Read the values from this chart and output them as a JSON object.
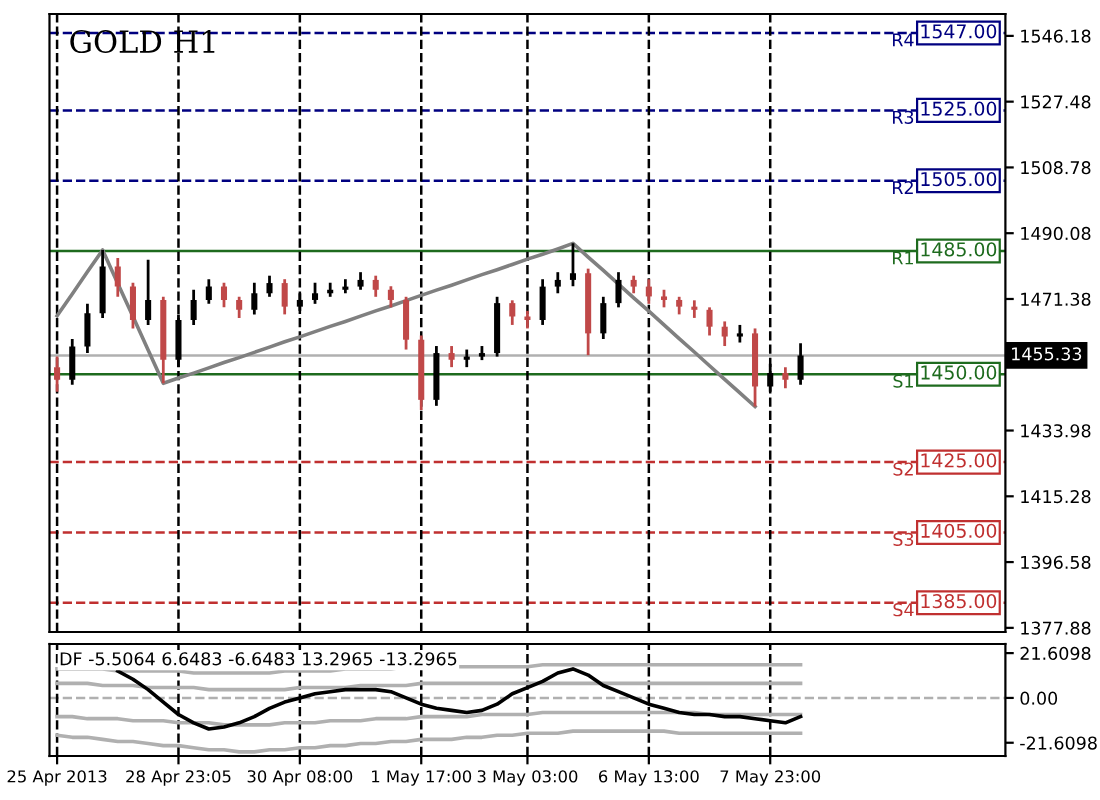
{
  "chart_data": [
    {
      "type": "candlestick",
      "title": "GOLD H1",
      "categories": [
        null,
        null,
        null,
        null,
        null,
        null,
        null,
        null,
        null,
        null,
        null,
        null,
        null,
        null,
        null,
        null,
        null,
        null,
        null,
        null,
        null,
        null,
        null,
        null,
        null,
        null,
        null,
        null,
        null,
        null,
        null,
        null,
        null,
        null,
        null,
        null,
        null,
        null,
        null,
        null,
        null,
        null,
        null,
        null,
        null,
        null,
        null,
        null,
        null,
        null,
        null,
        null,
        null,
        null,
        null,
        null,
        null,
        null,
        null,
        null,
        null,
        null,
        null
      ],
      "ohlc": [
        [
          1452.0,
          1455.0,
          1445.0,
          1448.4
        ],
        [
          1448.4,
          1460.0,
          1447.0,
          1457.9
        ],
        [
          1457.9,
          1470.0,
          1456.0,
          1467.3
        ],
        [
          1467.3,
          1485.3,
          1466.0,
          1480.6
        ],
        [
          1480.6,
          1483.0,
          1472.0,
          1474.9
        ],
        [
          1474.9,
          1476.0,
          1463.0,
          1465.4
        ],
        [
          1465.4,
          1482.5,
          1464.0,
          1471.1
        ],
        [
          1471.1,
          1472.0,
          1447.4,
          1454.1
        ],
        [
          1454.1,
          1467.0,
          1452.0,
          1465.4
        ],
        [
          1465.4,
          1474.0,
          1464.0,
          1471.1
        ],
        [
          1471.1,
          1477.0,
          1470.0,
          1474.9
        ],
        [
          1474.9,
          1476.0,
          1469.0,
          1471.1
        ],
        [
          1471.1,
          1472.0,
          1466.0,
          1468.3
        ],
        [
          1468.3,
          1476.0,
          1467.0,
          1473.0
        ],
        [
          1473.0,
          1478.0,
          1472.0,
          1475.9
        ],
        [
          1475.9,
          1477.0,
          1467.0,
          1469.2
        ],
        [
          1469.2,
          1473.0,
          1468.0,
          1471.1
        ],
        [
          1471.1,
          1476.0,
          1470.0,
          1473.0
        ],
        [
          1473.0,
          1476.0,
          1472.0,
          1474.0
        ],
        [
          1474.0,
          1477.0,
          1473.0,
          1474.9
        ],
        [
          1474.9,
          1479.0,
          1474.0,
          1476.8
        ],
        [
          1476.8,
          1478.0,
          1472.0,
          1474.0
        ],
        [
          1474.0,
          1475.0,
          1469.0,
          1471.1
        ],
        [
          1471.1,
          1472.0,
          1457.0,
          1459.8
        ],
        [
          1459.8,
          1461.0,
          1439.8,
          1442.7
        ],
        [
          1442.7,
          1458.0,
          1441.0,
          1456.0
        ],
        [
          1456.0,
          1458.0,
          1452.0,
          1454.1
        ],
        [
          1454.1,
          1457.0,
          1452.0,
          1455.0
        ],
        [
          1455.0,
          1458.0,
          1454.0,
          1456.0
        ],
        [
          1456.0,
          1472.0,
          1455.0,
          1470.2
        ],
        [
          1470.2,
          1471.0,
          1464.0,
          1466.4
        ],
        [
          1466.4,
          1468.0,
          1463.0,
          1465.4
        ],
        [
          1465.4,
          1477.0,
          1464.0,
          1474.9
        ],
        [
          1474.9,
          1479.0,
          1473.0,
          1476.8
        ],
        [
          1476.8,
          1487.2,
          1475.0,
          1478.7
        ],
        [
          1478.7,
          1480.0,
          1455.4,
          1461.6
        ],
        [
          1461.6,
          1472.0,
          1460.0,
          1470.2
        ],
        [
          1470.2,
          1479.0,
          1469.0,
          1476.8
        ],
        [
          1476.8,
          1478.0,
          1473.0,
          1474.9
        ],
        [
          1474.9,
          1477.0,
          1470.0,
          1472.1
        ],
        [
          1472.1,
          1474.0,
          1469.0,
          1471.1
        ],
        [
          1471.1,
          1472.0,
          1467.0,
          1469.2
        ],
        [
          1469.2,
          1471.0,
          1466.0,
          1468.3
        ],
        [
          1468.3,
          1469.0,
          1461.0,
          1463.5
        ],
        [
          1463.5,
          1465.0,
          1458.0,
          1460.7
        ],
        [
          1460.7,
          1464.0,
          1459.0,
          1461.6
        ],
        [
          1461.6,
          1463.0,
          1440.8,
          1446.5
        ],
        [
          1446.5,
          1453.0,
          1445.0,
          1450.3
        ],
        [
          1450.3,
          1452.0,
          1446.0,
          1448.4
        ],
        [
          1448.4,
          1458.8,
          1447.0,
          1455.3
        ],
        null,
        null,
        null,
        null,
        null,
        null,
        null,
        null,
        null,
        null,
        null,
        null,
        null
      ],
      "colors": [
        "#c04848",
        "#000000",
        "#000000",
        "#000000",
        "#c04848",
        "#c04848",
        "#000000",
        "#c04848",
        "#000000",
        "#000000",
        "#000000",
        "#c04848",
        "#c04848",
        "#000000",
        "#000000",
        "#c04848",
        "#000000",
        "#000000",
        "#000000",
        "#000000",
        "#000000",
        "#c04848",
        "#c04848",
        "#c04848",
        "#c04848",
        "#000000",
        "#c04848",
        "#000000",
        "#000000",
        "#000000",
        "#c04848",
        "#c04848",
        "#000000",
        "#000000",
        "#000000",
        "#c04848",
        "#000000",
        "#000000",
        "#c04848",
        "#c04848",
        "#c04848",
        "#c04848",
        "#c04848",
        "#c04848",
        "#c04848",
        "#000000",
        "#c04848",
        "#000000",
        "#c04848",
        "#000000",
        null,
        null,
        null,
        null,
        null,
        null,
        null,
        null,
        null,
        null,
        null,
        null,
        null
      ],
      "series": [
        {
          "type": "line",
          "color": "#808080",
          "values": [
            1466.6,
            1472.8,
            1479.1,
            1485.3,
            1475.8,
            1466.4,
            1456.9,
            1447.4,
            1448.9,
            1450.3,
            1451.8,
            1453.3,
            1454.7,
            1456.2,
            1457.7,
            1459.2,
            1460.6,
            1462.1,
            1463.6,
            1465.0,
            1466.5,
            1468.0,
            1469.4,
            1470.9,
            1472.4,
            1473.9,
            1475.3,
            1476.8,
            1478.3,
            1479.7,
            1481.2,
            1482.7,
            1484.1,
            1485.6,
            1487.2,
            1483.3,
            1479.5,
            1475.6,
            1471.7,
            1467.9,
            1464.0,
            1460.1,
            1456.3,
            1452.4,
            1448.5,
            1444.7,
            1440.8,
            null,
            null,
            null,
            null,
            null,
            null,
            null,
            null,
            null,
            null,
            null,
            null,
            null,
            null,
            null,
            null
          ]
        }
      ],
      "ylim": [
        1376.7,
        1552.4
      ],
      "yticks": [
        1546.18,
        1527.48,
        1508.78,
        1490.08,
        1471.38,
        1433.98,
        1415.28,
        1396.58,
        1377.88
      ],
      "grid": "x",
      "tick_labels": "y",
      "ref_lines": [
        {
          "axis": "y",
          "value": 1547.0,
          "label": "1547.00",
          "color": "#000080",
          "line_style": "dashed"
        },
        {
          "axis": "y",
          "value": 1525.0,
          "label": "1525.00",
          "color": "#000080",
          "line_style": "dashed"
        },
        {
          "axis": "y",
          "value": 1505.0,
          "label": "1505.00",
          "color": "#000080",
          "line_style": "dashed"
        },
        {
          "axis": "y",
          "value": 1485.0,
          "label": "1485.00",
          "color": "#1e6b1e",
          "line_style": "solid"
        },
        {
          "axis": "y",
          "value": 1450.0,
          "label": "1450.00",
          "color": "#1e6b1e",
          "line_style": "solid"
        },
        {
          "axis": "y",
          "value": 1425.0,
          "label": "1425.00",
          "color": "#c03030",
          "line_style": "dashed"
        },
        {
          "axis": "y",
          "value": 1405.0,
          "label": "1405.00",
          "color": "#c03030",
          "line_style": "dashed"
        },
        {
          "axis": "y",
          "value": 1385.0,
          "label": "1385.00",
          "color": "#c03030",
          "line_style": "dashed"
        },
        {
          "axis": "y",
          "value": 1455.33,
          "label": "1455.33",
          "color": "#b0b0b0",
          "line_style": "solid"
        }
      ],
      "annotations": [
        "R4",
        "R3",
        "R2",
        "R1",
        "S1",
        "S2",
        "S3",
        "S4"
      ]
    },
    {
      "type": "line",
      "title": "DF -5.5064 6.6483 -6.6483 13.2965 -13.2965",
      "categories": [
        "25 Apr 2013",
        null,
        null,
        null,
        null,
        null,
        null,
        null,
        "28 Apr 23:05",
        null,
        null,
        null,
        null,
        null,
        null,
        null,
        "30 Apr 08:00",
        null,
        null,
        null,
        null,
        null,
        null,
        null,
        "1 May 17:00",
        null,
        null,
        null,
        null,
        null,
        null,
        "3 May 03:00",
        null,
        null,
        null,
        null,
        null,
        null,
        null,
        "6 May 13:00",
        null,
        null,
        null,
        null,
        null,
        null,
        null,
        "7 May 23:00",
        null,
        null,
        null,
        null,
        null,
        null,
        null,
        null,
        null,
        null,
        null,
        null,
        null,
        null,
        null
      ],
      "series": [
        {
          "color": "#b0b0b0",
          "values": [
            14,
            14,
            14,
            14,
            13,
            13,
            13,
            13,
            13,
            12,
            12,
            12,
            12,
            12,
            12,
            13,
            13,
            13,
            13,
            14,
            14,
            14,
            14,
            15,
            15,
            15,
            15,
            15,
            15,
            15,
            15,
            15,
            16,
            16,
            16,
            16,
            16,
            16,
            16,
            16,
            16,
            16,
            16,
            16,
            16,
            16,
            16,
            16,
            16,
            16,
            null,
            null,
            null,
            null,
            null,
            null,
            null,
            null,
            null,
            null,
            null,
            null,
            null
          ]
        },
        {
          "color": "#b0b0b0",
          "values": [
            7,
            7,
            7,
            6,
            6,
            6,
            5,
            5,
            5,
            5,
            4,
            4,
            4,
            4,
            4,
            4,
            5,
            5,
            5,
            5,
            6,
            6,
            6,
            6,
            7,
            7,
            7,
            7,
            7,
            7,
            7,
            7,
            7,
            7,
            7,
            7,
            7,
            7,
            7,
            7,
            7,
            7,
            7,
            7,
            7,
            7,
            7,
            7,
            7,
            7,
            null,
            null,
            null,
            null,
            null,
            null,
            null,
            null,
            null,
            null,
            null,
            null,
            null
          ]
        },
        {
          "color": "#b0b0b0",
          "values": [
            -9,
            -9,
            -10,
            -10,
            -10,
            -11,
            -11,
            -11,
            -12,
            -12,
            -12,
            -13,
            -13,
            -13,
            -13,
            -12,
            -12,
            -12,
            -11,
            -11,
            -11,
            -10,
            -10,
            -10,
            -9,
            -9,
            -9,
            -9,
            -8,
            -8,
            -8,
            -8,
            -7,
            -7,
            -7,
            -7,
            -7,
            -7,
            -7,
            -7,
            -7,
            -7,
            -7,
            -8,
            -8,
            -8,
            -8,
            -8,
            -8,
            -8,
            null,
            null,
            null,
            null,
            null,
            null,
            null,
            null,
            null,
            null,
            null,
            null,
            null
          ]
        },
        {
          "color": "#b0b0b0",
          "values": [
            -18,
            -19,
            -19,
            -20,
            -21,
            -21,
            -22,
            -23,
            -23,
            -24,
            -25,
            -25,
            -26,
            -26,
            -25,
            -25,
            -24,
            -24,
            -23,
            -23,
            -22,
            -22,
            -21,
            -21,
            -20,
            -20,
            -20,
            -19,
            -19,
            -18,
            -18,
            -17,
            -17,
            -17,
            -16,
            -16,
            -16,
            -16,
            -16,
            -16,
            -16,
            -17,
            -17,
            -17,
            -17,
            -17,
            -17,
            -17,
            -17,
            -17,
            null,
            null,
            null,
            null,
            null,
            null,
            null,
            null,
            null,
            null,
            null,
            null,
            null
          ]
        },
        {
          "color": "#000000",
          "values": [
            null,
            null,
            null,
            null,
            13,
            9,
            4,
            -2,
            -8,
            -12,
            -15,
            -14,
            -12,
            -9,
            -5,
            -2,
            0,
            2,
            3,
            4,
            4,
            4,
            3,
            0,
            -3,
            -5,
            -6,
            -7,
            -6,
            -3,
            2,
            5,
            8,
            12,
            14,
            11,
            6,
            3,
            0,
            -3,
            -5,
            -7,
            -8,
            -8,
            -9,
            -9,
            -10,
            -11,
            -12,
            -9,
            null,
            null,
            null,
            null,
            null,
            null,
            null,
            null,
            null,
            null,
            null,
            null,
            null
          ]
        }
      ],
      "ylim": [
        -28,
        26
      ],
      "yticks": [
        21.6098,
        {
          "value": 0,
          "label": "0.00"
        },
        -21.6098
      ],
      "grid": "x",
      "ref_lines": [
        {
          "axis": "y",
          "value": 0,
          "color": "#b0b0b0",
          "line_style": "dashed"
        }
      ]
    }
  ]
}
